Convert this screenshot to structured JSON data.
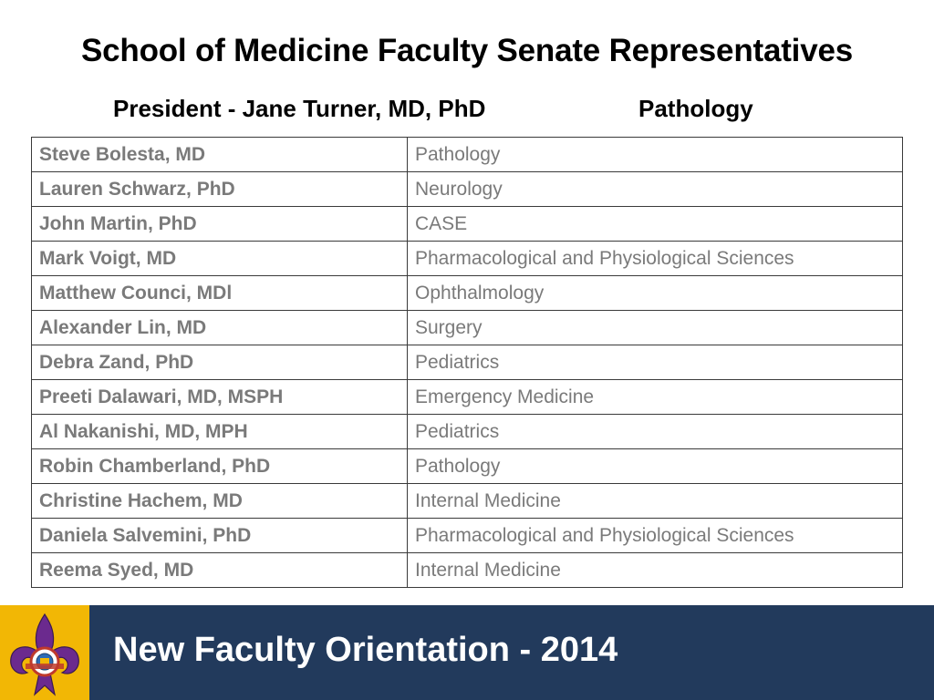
{
  "title": "School of Medicine Faculty Senate Representatives",
  "president": {
    "label": "President - Jane Turner, MD, PhD",
    "department": "Pathology"
  },
  "table": {
    "rows": [
      {
        "name": "Steve Bolesta, MD",
        "department": "Pathology"
      },
      {
        "name": "Lauren Schwarz, PhD",
        "department": "Neurology"
      },
      {
        "name": "John Martin, PhD",
        "department": "CASE"
      },
      {
        "name": "Mark Voigt, MD",
        "department": "Pharmacological and Physiological Sciences"
      },
      {
        "name": "Matthew Counci, MDl",
        "department": "Ophthalmology"
      },
      {
        "name": "Alexander Lin, MD",
        "department": "Surgery"
      },
      {
        "name": "Debra Zand, PhD",
        "department": "Pediatrics"
      },
      {
        "name": "Preeti Dalawari, MD, MSPH",
        "department": "Emergency Medicine"
      },
      {
        "name": "Al Nakanishi, MD, MPH",
        "department": "Pediatrics"
      },
      {
        "name": "Robin Chamberland, PhD",
        "department": "Pathology"
      },
      {
        "name": "Christine Hachem, MD",
        "department": "Internal Medicine"
      },
      {
        "name": "Daniela Salvemini, PhD",
        "department": "Pharmacological and Physiological Sciences"
      },
      {
        "name": "Reema Syed, MD",
        "department": "Internal Medicine"
      }
    ]
  },
  "footer": {
    "text": "New Faculty Orientation - 2014",
    "logo_icon": "fleur-de-lis-crest-icon"
  },
  "colors": {
    "footer_background": "#223a5c",
    "logo_background": "#f2b705",
    "table_text": "#7a7a7a"
  }
}
